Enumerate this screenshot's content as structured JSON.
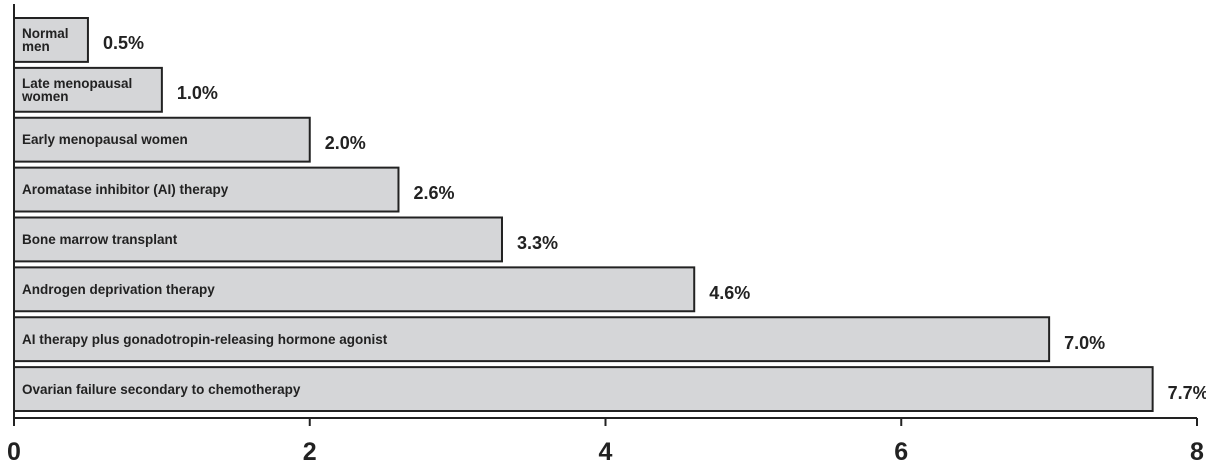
{
  "chart_data": {
    "type": "barh",
    "categories": [
      "Normal men",
      "Late menopausal women",
      "Early menopausal women",
      "Aromatase inhibitor (AI) therapy",
      "Bone marrow transplant",
      "Androgen deprivation therapy",
      "AI therapy plus gonadotropin-releasing hormone agonist",
      "Ovarian failure secondary to chemotherapy"
    ],
    "values": [
      0.5,
      1.0,
      2.0,
      2.6,
      3.3,
      4.6,
      7.0,
      7.7
    ],
    "value_labels": [
      "0.5%",
      "1.0%",
      "2.0%",
      "2.6%",
      "3.3%",
      "4.6%",
      "7.0%",
      "7.7%"
    ],
    "color": "#d5d6d8",
    "xlim": [
      0,
      8
    ],
    "xticks": [
      0,
      2,
      4,
      6,
      8
    ]
  }
}
